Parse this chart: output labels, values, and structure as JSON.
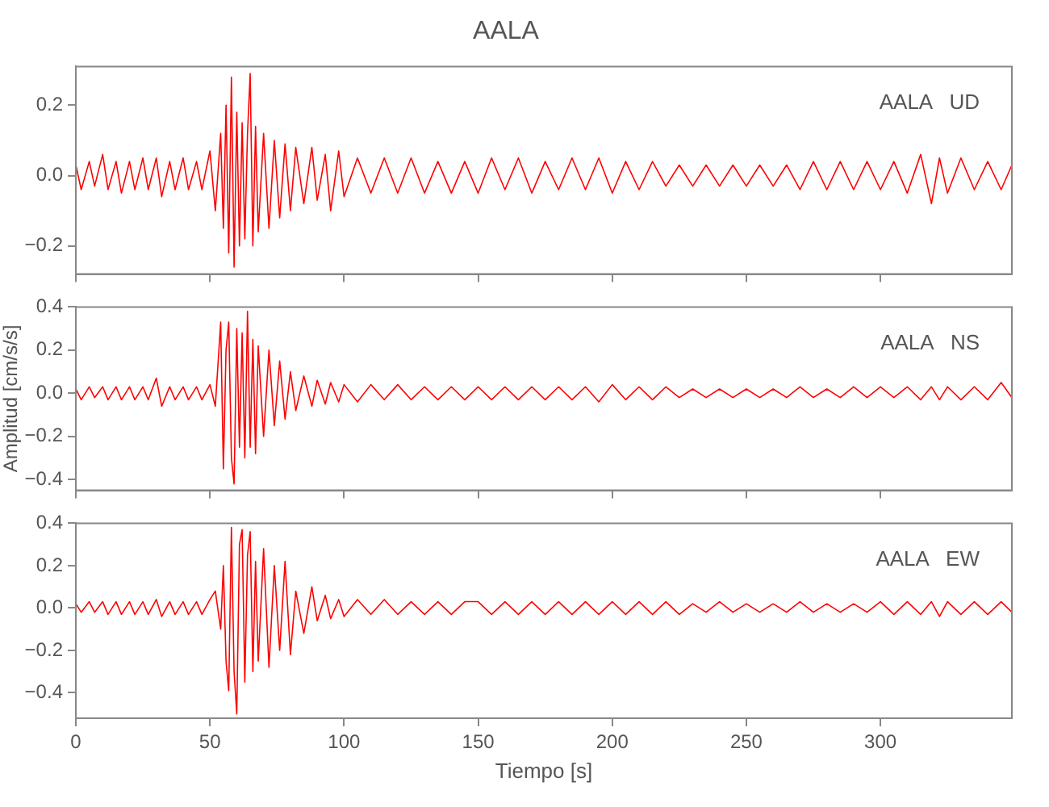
{
  "chart_data": [
    {
      "type": "line",
      "title": "AALA",
      "annotations": [
        "AALA   UD"
      ],
      "marker": "none",
      "grid": false,
      "legend": false,
      "tick_labels": "y",
      "xlim": [
        0,
        349
      ],
      "xticks": [
        0,
        50,
        100,
        150,
        200,
        250,
        300
      ],
      "ylim": [
        -0.28,
        0.31
      ],
      "yticks": [
        {
          "value": -0.2,
          "label": "−0.2"
        },
        {
          "value": 0,
          "label": "0.0"
        },
        {
          "value": 0.2,
          "label": "0.2"
        }
      ],
      "x": [
        0,
        2,
        5,
        7,
        10,
        12,
        15,
        17,
        20,
        22,
        25,
        27,
        30,
        32,
        35,
        37,
        40,
        42,
        45,
        47,
        50,
        52,
        54,
        55,
        56,
        57,
        58,
        59,
        60,
        61,
        62,
        63,
        64,
        65,
        66,
        67,
        68,
        70,
        72,
        74,
        76,
        78,
        80,
        82,
        85,
        88,
        90,
        93,
        95,
        98,
        100,
        105,
        110,
        115,
        120,
        125,
        130,
        135,
        140,
        145,
        150,
        155,
        160,
        165,
        170,
        175,
        180,
        185,
        190,
        195,
        200,
        205,
        210,
        215,
        220,
        225,
        230,
        235,
        240,
        245,
        250,
        255,
        260,
        265,
        270,
        275,
        280,
        285,
        290,
        295,
        300,
        305,
        310,
        315,
        319,
        322,
        325,
        330,
        335,
        340,
        345,
        349
      ],
      "series": [
        {
          "color": "#ff0000",
          "values": [
            0.03,
            -0.04,
            0.04,
            -0.03,
            0.06,
            -0.04,
            0.04,
            -0.05,
            0.04,
            -0.04,
            0.05,
            -0.04,
            0.05,
            -0.06,
            0.04,
            -0.04,
            0.05,
            -0.04,
            0.04,
            -0.04,
            0.07,
            -0.1,
            0.12,
            -0.15,
            0.2,
            -0.22,
            0.28,
            -0.26,
            0.18,
            -0.2,
            0.15,
            -0.18,
            0.12,
            0.29,
            -0.2,
            0.14,
            -0.16,
            0.12,
            -0.15,
            0.1,
            -0.12,
            0.09,
            -0.1,
            0.08,
            -0.08,
            0.08,
            -0.07,
            0.06,
            -0.1,
            0.07,
            -0.06,
            0.05,
            -0.05,
            0.05,
            -0.05,
            0.05,
            -0.05,
            0.04,
            -0.05,
            0.04,
            -0.05,
            0.05,
            -0.04,
            0.05,
            -0.05,
            0.04,
            -0.04,
            0.05,
            -0.04,
            0.05,
            -0.05,
            0.04,
            -0.04,
            0.04,
            -0.03,
            0.03,
            -0.03,
            0.03,
            -0.03,
            0.03,
            -0.03,
            0.03,
            -0.03,
            0.03,
            -0.04,
            0.04,
            -0.04,
            0.04,
            -0.04,
            0.04,
            -0.04,
            0.04,
            -0.05,
            0.06,
            -0.08,
            0.05,
            -0.05,
            0.05,
            -0.04,
            0.04,
            -0.04,
            0.03
          ]
        }
      ]
    },
    {
      "type": "line",
      "ylabel": "Amplitud [cm/s/s]",
      "annotations": [
        "AALA   NS"
      ],
      "marker": "none",
      "grid": false,
      "legend": false,
      "tick_labels": "y",
      "xlim": [
        0,
        349
      ],
      "xticks": [
        0,
        50,
        100,
        150,
        200,
        250,
        300
      ],
      "ylim": [
        -0.45,
        0.4
      ],
      "yticks": [
        {
          "value": -0.4,
          "label": "−0.4"
        },
        {
          "value": -0.2,
          "label": "−0.2"
        },
        {
          "value": 0,
          "label": "0.0"
        },
        {
          "value": 0.2,
          "label": "0.2"
        },
        {
          "value": 0.4,
          "label": "0.4"
        }
      ],
      "x": [
        0,
        2,
        5,
        7,
        10,
        12,
        15,
        17,
        20,
        22,
        25,
        27,
        30,
        32,
        35,
        37,
        40,
        42,
        45,
        47,
        50,
        52,
        54,
        55,
        56,
        57,
        58,
        59,
        60,
        61,
        62,
        63,
        64,
        65,
        66,
        67,
        68,
        70,
        72,
        74,
        76,
        78,
        80,
        82,
        85,
        88,
        90,
        93,
        95,
        98,
        100,
        105,
        110,
        115,
        120,
        125,
        130,
        135,
        140,
        145,
        150,
        155,
        160,
        165,
        170,
        175,
        180,
        185,
        190,
        195,
        200,
        205,
        210,
        215,
        220,
        225,
        230,
        235,
        240,
        245,
        250,
        255,
        260,
        265,
        270,
        275,
        280,
        285,
        290,
        295,
        300,
        305,
        310,
        315,
        319,
        322,
        325,
        330,
        335,
        340,
        345,
        349
      ],
      "series": [
        {
          "color": "#ff0000",
          "values": [
            0.02,
            -0.03,
            0.03,
            -0.02,
            0.03,
            -0.03,
            0.03,
            -0.03,
            0.03,
            -0.03,
            0.03,
            -0.03,
            0.07,
            -0.06,
            0.03,
            -0.03,
            0.03,
            -0.03,
            0.03,
            -0.03,
            0.04,
            -0.06,
            0.33,
            -0.35,
            0.2,
            0.33,
            -0.3,
            -0.42,
            0.3,
            -0.25,
            0.28,
            -0.3,
            0.38,
            -0.25,
            0.25,
            -0.28,
            0.22,
            -0.2,
            0.2,
            -0.15,
            0.15,
            -0.12,
            0.1,
            -0.08,
            0.08,
            -0.06,
            0.06,
            -0.05,
            0.05,
            -0.04,
            0.04,
            -0.04,
            0.04,
            -0.03,
            0.04,
            -0.03,
            0.03,
            -0.03,
            0.03,
            -0.03,
            0.03,
            -0.03,
            0.03,
            -0.03,
            0.03,
            -0.03,
            0.03,
            -0.03,
            0.03,
            -0.04,
            0.04,
            -0.03,
            0.03,
            -0.03,
            0.03,
            -0.02,
            0.02,
            -0.02,
            0.02,
            -0.02,
            0.02,
            -0.02,
            0.02,
            -0.02,
            0.03,
            -0.02,
            0.02,
            -0.02,
            0.03,
            -0.02,
            0.03,
            -0.02,
            0.03,
            -0.03,
            0.03,
            -0.03,
            0.03,
            -0.03,
            0.03,
            -0.03,
            0.05,
            -0.02
          ]
        }
      ]
    },
    {
      "type": "line",
      "xlabel": "Tiempo [s]",
      "annotations": [
        "AALA   EW"
      ],
      "marker": "none",
      "grid": false,
      "legend": false,
      "xlim": [
        0,
        349
      ],
      "xticks": [
        0,
        50,
        100,
        150,
        200,
        250,
        300
      ],
      "ylim": [
        -0.52,
        0.4
      ],
      "yticks": [
        {
          "value": -0.4,
          "label": "−0.4"
        },
        {
          "value": -0.2,
          "label": "−0.2"
        },
        {
          "value": 0,
          "label": "0.0"
        },
        {
          "value": 0.2,
          "label": "0.2"
        },
        {
          "value": 0.4,
          "label": "0.4"
        }
      ],
      "x": [
        0,
        2,
        5,
        7,
        10,
        12,
        15,
        17,
        20,
        22,
        25,
        27,
        30,
        32,
        35,
        37,
        40,
        42,
        45,
        47,
        50,
        52,
        54,
        55,
        56,
        57,
        58,
        59,
        60,
        61,
        62,
        63,
        64,
        65,
        66,
        67,
        68,
        70,
        72,
        74,
        76,
        78,
        80,
        82,
        85,
        88,
        90,
        93,
        95,
        98,
        100,
        105,
        110,
        115,
        120,
        125,
        130,
        135,
        140,
        145,
        150,
        155,
        160,
        165,
        170,
        175,
        180,
        185,
        190,
        195,
        200,
        205,
        210,
        215,
        220,
        225,
        230,
        235,
        240,
        245,
        250,
        255,
        260,
        265,
        270,
        275,
        280,
        285,
        290,
        295,
        300,
        305,
        310,
        315,
        319,
        322,
        325,
        330,
        335,
        340,
        345,
        349
      ],
      "series": [
        {
          "color": "#ff0000",
          "values": [
            0.02,
            -0.02,
            0.03,
            -0.02,
            0.03,
            -0.03,
            0.03,
            -0.03,
            0.03,
            -0.03,
            0.03,
            -0.03,
            0.04,
            -0.04,
            0.03,
            -0.03,
            0.03,
            -0.03,
            0.03,
            -0.03,
            0.04,
            0.08,
            -0.1,
            0.2,
            -0.25,
            -0.39,
            0.38,
            -0.3,
            -0.5,
            0.3,
            0.37,
            -0.35,
            0.25,
            0.36,
            -0.3,
            0.22,
            -0.25,
            0.28,
            -0.28,
            0.2,
            -0.2,
            0.22,
            -0.22,
            0.08,
            -0.12,
            0.1,
            -0.06,
            0.06,
            -0.05,
            0.04,
            -0.04,
            0.04,
            -0.03,
            0.04,
            -0.03,
            0.03,
            -0.03,
            0.03,
            -0.03,
            0.03,
            0.03,
            -0.03,
            0.03,
            -0.03,
            0.03,
            -0.03,
            0.03,
            -0.03,
            0.03,
            -0.03,
            0.03,
            -0.03,
            0.03,
            -0.03,
            0.03,
            -0.03,
            0.02,
            -0.02,
            0.03,
            -0.02,
            0.02,
            -0.02,
            0.02,
            -0.02,
            0.03,
            -0.02,
            0.02,
            -0.02,
            0.02,
            -0.02,
            0.03,
            -0.03,
            0.03,
            -0.03,
            0.03,
            -0.04,
            0.03,
            -0.03,
            0.03,
            -0.03,
            0.03,
            -0.02
          ]
        }
      ]
    }
  ]
}
